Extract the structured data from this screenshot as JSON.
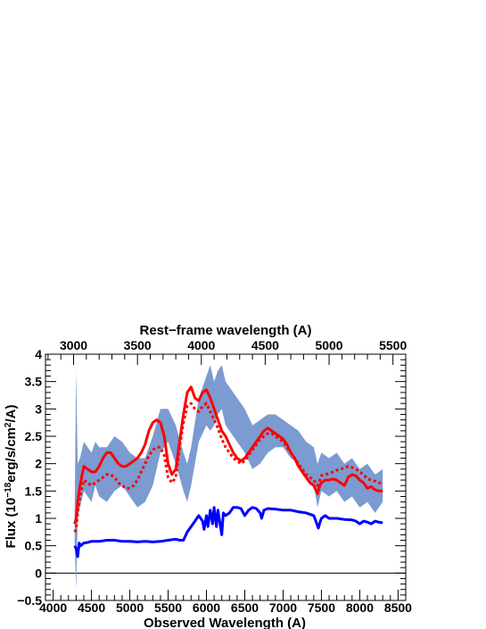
{
  "chart_data": {
    "type": "line",
    "title": "",
    "xlabel": "Observed Wavelength (A)",
    "x2label": "Rest−frame wavelength (A)",
    "ylabel_parts": {
      "prefix": "Flux (10",
      "exp1": "−18",
      "mid": "erg/s/cm",
      "exp2": "2",
      "suffix": "/A)"
    },
    "xlim": [
      3900,
      8600
    ],
    "ylim": [
      -0.5,
      4
    ],
    "x2lim": [
      2780,
      5600
    ],
    "xticks": [
      4000,
      4500,
      5000,
      5500,
      6000,
      6500,
      7000,
      7500,
      8000,
      8500
    ],
    "xtick_labels": [
      "4000",
      "4500",
      "5000",
      "5500",
      "6000",
      "6500",
      "7000",
      "7500",
      "8000",
      "8500"
    ],
    "x2ticks": [
      3000,
      3500,
      4000,
      4500,
      5000,
      5500
    ],
    "x2tick_labels": [
      "3000",
      "3500",
      "4000",
      "4500",
      "5000",
      "5500"
    ],
    "yticks": [
      -0.5,
      0,
      0.5,
      1,
      1.5,
      2,
      2.5,
      3,
      3.5,
      4
    ],
    "ytick_labels": [
      "−0.5",
      "0",
      "0.5",
      "1",
      "1.5",
      "2",
      "2.5",
      "3",
      "3.5",
      "4"
    ],
    "grid": false,
    "legend": "none",
    "reference_line_y": 0,
    "colors": {
      "observed_band": "#7b9bd1",
      "model_solid": "#ff0000",
      "model_dotted": "#ff0000",
      "blue_component": "#0000ff",
      "axes": "#000000"
    },
    "series": [
      {
        "style": "band",
        "x": [
          4280,
          4300,
          4320,
          4350,
          4400,
          4450,
          4500,
          4550,
          4600,
          4700,
          4800,
          4900,
          5000,
          5100,
          5200,
          5300,
          5400,
          5500,
          5600,
          5700,
          5750,
          5800,
          5900,
          6000,
          6050,
          6100,
          6150,
          6200,
          6250,
          6300,
          6400,
          6500,
          6600,
          6700,
          6800,
          6900,
          7000,
          7100,
          7200,
          7300,
          7400,
          7450,
          7500,
          7600,
          7700,
          7800,
          7900,
          8000,
          8100,
          8200,
          8300
        ],
        "lower": [
          0.6,
          -0.3,
          1.0,
          1.2,
          1.5,
          1.4,
          1.3,
          1.6,
          1.4,
          1.3,
          1.5,
          1.6,
          1.4,
          1.2,
          1.3,
          1.6,
          2.2,
          2.4,
          2.0,
          1.5,
          1.3,
          1.6,
          2.4,
          2.7,
          2.6,
          2.7,
          2.9,
          3.0,
          2.7,
          2.6,
          2.4,
          2.2,
          1.9,
          2.0,
          2.2,
          2.3,
          2.3,
          2.1,
          2.0,
          1.7,
          1.6,
          1.2,
          1.5,
          1.4,
          1.5,
          1.3,
          1.4,
          1.2,
          1.3,
          1.1,
          1.3
        ],
        "upper": [
          1.1,
          3.7,
          2.0,
          2.1,
          2.4,
          2.3,
          2.2,
          2.4,
          2.3,
          2.3,
          2.5,
          2.4,
          2.2,
          2.1,
          2.1,
          2.5,
          3.0,
          3.0,
          2.7,
          2.2,
          2.0,
          2.3,
          3.2,
          3.6,
          3.8,
          3.5,
          3.7,
          3.8,
          3.5,
          3.4,
          3.2,
          3.0,
          2.7,
          2.8,
          2.9,
          2.9,
          2.8,
          2.7,
          2.6,
          2.4,
          2.3,
          2.0,
          2.2,
          2.1,
          2.2,
          2.0,
          2.1,
          1.9,
          2.0,
          1.8,
          1.9
        ]
      },
      {
        "style": "solid",
        "x": [
          4280,
          4300,
          4320,
          4350,
          4400,
          4450,
          4500,
          4550,
          4600,
          4650,
          4700,
          4750,
          4800,
          4850,
          4900,
          4950,
          5000,
          5050,
          5100,
          5150,
          5200,
          5250,
          5300,
          5350,
          5400,
          5450,
          5500,
          5550,
          5600,
          5650,
          5700,
          5750,
          5800,
          5850,
          5900,
          5950,
          6000,
          6050,
          6100,
          6150,
          6200,
          6250,
          6300,
          6350,
          6400,
          6450,
          6500,
          6550,
          6600,
          6650,
          6700,
          6750,
          6800,
          6850,
          6900,
          6950,
          7000,
          7050,
          7100,
          7150,
          7200,
          7250,
          7300,
          7350,
          7400,
          7450,
          7480,
          7500,
          7550,
          7600,
          7650,
          7700,
          7750,
          7800,
          7850,
          7900,
          7950,
          8000,
          8050,
          8100,
          8150,
          8200,
          8250,
          8300
        ],
        "y": [
          0.9,
          1.0,
          1.3,
          1.6,
          1.95,
          1.9,
          1.85,
          1.85,
          1.95,
          2.1,
          2.2,
          2.2,
          2.1,
          2.0,
          1.95,
          1.95,
          2.0,
          2.05,
          2.1,
          2.2,
          2.35,
          2.6,
          2.75,
          2.8,
          2.75,
          2.5,
          2.0,
          1.8,
          1.9,
          2.4,
          2.9,
          3.3,
          3.4,
          3.2,
          3.15,
          3.3,
          3.35,
          3.2,
          3.0,
          2.8,
          2.6,
          2.5,
          2.35,
          2.2,
          2.1,
          2.05,
          2.1,
          2.2,
          2.3,
          2.4,
          2.5,
          2.6,
          2.65,
          2.6,
          2.55,
          2.5,
          2.45,
          2.35,
          2.2,
          2.1,
          1.95,
          1.85,
          1.75,
          1.65,
          1.6,
          1.45,
          1.6,
          1.65,
          1.7,
          1.7,
          1.72,
          1.7,
          1.65,
          1.6,
          1.75,
          1.8,
          1.78,
          1.7,
          1.65,
          1.55,
          1.58,
          1.52,
          1.5,
          1.5
        ]
      },
      {
        "style": "dotted",
        "x": [
          4280,
          4300,
          4320,
          4350,
          4400,
          4450,
          4500,
          4550,
          4600,
          4650,
          4700,
          4750,
          4800,
          4850,
          4900,
          4950,
          5000,
          5050,
          5100,
          5150,
          5200,
          5250,
          5300,
          5350,
          5400,
          5450,
          5500,
          5550,
          5600,
          5650,
          5700,
          5750,
          5800,
          5850,
          5900,
          5950,
          6000,
          6050,
          6100,
          6150,
          6200,
          6250,
          6300,
          6350,
          6400,
          6450,
          6500,
          6550,
          6600,
          6650,
          6700,
          6750,
          6800,
          6850,
          6900,
          6950,
          7000,
          7050,
          7100,
          7150,
          7200,
          7250,
          7300,
          7350,
          7400,
          7450,
          7480,
          7500,
          7550,
          7600,
          7650,
          7700,
          7750,
          7800,
          7850,
          7900,
          7950,
          8000,
          8050,
          8100,
          8150,
          8200,
          8250,
          8300
        ],
        "y": [
          0.75,
          0.8,
          1.1,
          1.4,
          1.7,
          1.65,
          1.6,
          1.65,
          1.7,
          1.75,
          1.8,
          1.8,
          1.75,
          1.65,
          1.6,
          1.55,
          1.55,
          1.6,
          1.7,
          1.85,
          2.0,
          2.15,
          2.25,
          2.3,
          2.3,
          2.15,
          1.75,
          1.65,
          1.75,
          2.3,
          2.75,
          3.05,
          3.1,
          3.0,
          2.95,
          3.05,
          3.1,
          2.95,
          2.8,
          2.65,
          2.45,
          2.3,
          2.2,
          2.1,
          2.05,
          2.0,
          2.05,
          2.15,
          2.25,
          2.35,
          2.45,
          2.5,
          2.55,
          2.55,
          2.5,
          2.45,
          2.4,
          2.3,
          2.2,
          2.1,
          2.0,
          1.9,
          1.8,
          1.75,
          1.7,
          1.6,
          1.7,
          1.78,
          1.8,
          1.82,
          1.85,
          1.88,
          1.9,
          1.92,
          1.95,
          1.93,
          1.9,
          1.85,
          1.8,
          1.72,
          1.7,
          1.68,
          1.65,
          1.65
        ]
      },
      {
        "style": "solid-blue",
        "x": [
          4280,
          4300,
          4320,
          4340,
          4360,
          4400,
          4450,
          4500,
          4600,
          4700,
          4800,
          4900,
          5000,
          5100,
          5200,
          5300,
          5400,
          5500,
          5600,
          5650,
          5700,
          5750,
          5800,
          5850,
          5900,
          5950,
          5970,
          6000,
          6020,
          6050,
          6080,
          6100,
          6130,
          6150,
          6200,
          6220,
          6250,
          6300,
          6350,
          6400,
          6450,
          6500,
          6550,
          6600,
          6650,
          6700,
          6720,
          6750,
          6800,
          6900,
          7000,
          7100,
          7200,
          7300,
          7400,
          7440,
          7460,
          7480,
          7500,
          7550,
          7600,
          7700,
          7800,
          7900,
          7950,
          8000,
          8050,
          8100,
          8150,
          8200,
          8250,
          8300
        ],
        "y": [
          0.5,
          0.45,
          0.3,
          0.55,
          0.5,
          0.55,
          0.56,
          0.58,
          0.58,
          0.6,
          0.6,
          0.58,
          0.58,
          0.57,
          0.58,
          0.57,
          0.58,
          0.6,
          0.62,
          0.6,
          0.6,
          0.75,
          0.85,
          0.95,
          1.05,
          0.95,
          0.8,
          1.05,
          0.85,
          1.15,
          0.9,
          1.2,
          0.85,
          1.15,
          0.7,
          1.1,
          1.05,
          1.1,
          1.2,
          1.2,
          1.18,
          1.05,
          1.15,
          1.2,
          1.18,
          1.1,
          1.0,
          1.15,
          1.18,
          1.17,
          1.15,
          1.15,
          1.12,
          1.1,
          1.05,
          0.9,
          0.82,
          0.92,
          1.0,
          1.05,
          1.0,
          1.0,
          0.98,
          0.97,
          0.95,
          0.9,
          0.95,
          0.93,
          0.9,
          0.95,
          0.93,
          0.92
        ]
      }
    ]
  }
}
